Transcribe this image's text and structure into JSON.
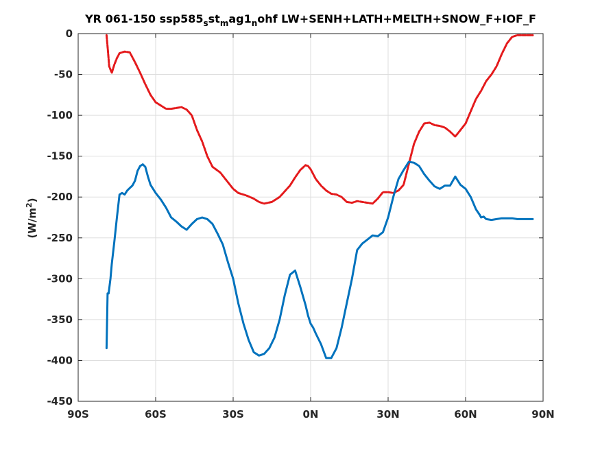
{
  "chart_data": {
    "type": "line",
    "title": {
      "prefix": "YR 061-150 ssp585",
      "sub1": "s",
      "mid1": "st",
      "sub2": "m",
      "mid2": "ag1",
      "sub3": "n",
      "suffix": "ohf LW+SENH+LATH+MELTH+SNOW_F+IOF_F"
    },
    "ylabel": {
      "prefix": "(W/m",
      "sup": "2",
      "suffix": ")"
    },
    "xlabel": "",
    "xlim": [
      -90,
      90
    ],
    "ylim": [
      -450,
      0
    ],
    "xticks": [
      -90,
      -60,
      -30,
      0,
      30,
      60,
      90
    ],
    "xtick_labels": [
      "90S",
      "60S",
      "30S",
      "0N",
      "30N",
      "60N",
      "90N"
    ],
    "yticks": [
      0,
      -50,
      -100,
      -150,
      -200,
      -250,
      -300,
      -350,
      -400,
      -450
    ],
    "ytick_labels": [
      "0",
      "-50",
      "-100",
      "-150",
      "-200",
      "-250",
      "-300",
      "-350",
      "-400",
      "-450"
    ],
    "grid": true,
    "series": [
      {
        "color": "#e41a1c",
        "style": "dashed",
        "x": [
          -79,
          -78.5,
          -78,
          -77,
          -76,
          -75,
          -74,
          -72,
          -70,
          -68,
          -66,
          -64,
          -62,
          -60,
          -58,
          -56,
          -54,
          -52,
          -50,
          -48,
          -46,
          -44,
          -42,
          -40,
          -38,
          -35,
          -32,
          -30,
          -28,
          -25,
          -22,
          -20,
          -18,
          -15,
          -12,
          -10,
          -8,
          -6,
          -4,
          -2,
          -1,
          0,
          1,
          2,
          4,
          6,
          8,
          10,
          12,
          14,
          16,
          18,
          20,
          22,
          24,
          26,
          28,
          30,
          32,
          34,
          36,
          38,
          40,
          42,
          44,
          46,
          48,
          50,
          52,
          54,
          56,
          58,
          60,
          62,
          64,
          66,
          68,
          70,
          72,
          74,
          76,
          78,
          80,
          82,
          84,
          86
        ],
        "y": [
          -2,
          -20,
          -40,
          -48,
          -38,
          -30,
          -24,
          -22,
          -23,
          -35,
          -48,
          -62,
          -75,
          -84,
          -88,
          -92,
          -92,
          -91,
          -90,
          -93,
          -100,
          -118,
          -132,
          -150,
          -163,
          -170,
          -182,
          -190,
          -195,
          -198,
          -202,
          -206,
          -208,
          -206,
          -200,
          -193,
          -186,
          -176,
          -167,
          -161,
          -162,
          -166,
          -172,
          -178,
          -186,
          -192,
          -196,
          -197,
          -200,
          -206,
          -207,
          -205,
          -206,
          -207,
          -208,
          -202,
          -194,
          -194,
          -195,
          -192,
          -185,
          -160,
          -135,
          -120,
          -110,
          -109,
          -112,
          -113,
          -115,
          -120,
          -126,
          -118,
          -110,
          -95,
          -80,
          -70,
          -58,
          -50,
          -40,
          -25,
          -12,
          -4,
          -2,
          -2,
          -2,
          -2
        ]
      },
      {
        "color": "#0072bd",
        "style": "solid",
        "x": [
          -79,
          -78.6,
          -78.2,
          -77.5,
          -77,
          -76,
          -75,
          -74,
          -73,
          -72,
          -71,
          -70,
          -69,
          -68,
          -67,
          -66,
          -65,
          -64,
          -63,
          -62,
          -60,
          -58,
          -56,
          -54,
          -52,
          -50,
          -48,
          -46,
          -44,
          -42,
          -40,
          -38,
          -36,
          -34,
          -32,
          -30,
          -28,
          -26,
          -24,
          -22,
          -20,
          -18,
          -16,
          -14,
          -12,
          -10,
          -8,
          -6,
          -4,
          -2,
          -1,
          0,
          1,
          2,
          4,
          6,
          8,
          10,
          12,
          14,
          16,
          18,
          20,
          22,
          24,
          26,
          28,
          30,
          32,
          34,
          36,
          38,
          40,
          42,
          44,
          46,
          48,
          50,
          52,
          54,
          56,
          58,
          60,
          62,
          64,
          65.5,
          66,
          67,
          68,
          70,
          72,
          74,
          76,
          78,
          80,
          82,
          84,
          86
        ],
        "y": [
          -385,
          -318,
          -318,
          -300,
          -282,
          -255,
          -225,
          -197,
          -195,
          -197,
          -192,
          -189,
          -186,
          -180,
          -168,
          -162,
          -160,
          -163,
          -175,
          -185,
          -195,
          -203,
          -213,
          -225,
          -230,
          -236,
          -240,
          -233,
          -227,
          -225,
          -227,
          -233,
          -245,
          -258,
          -280,
          -300,
          -330,
          -355,
          -375,
          -390,
          -394,
          -392,
          -385,
          -372,
          -350,
          -320,
          -295,
          -290,
          -310,
          -332,
          -345,
          -355,
          -360,
          -367,
          -380,
          -397,
          -397,
          -385,
          -360,
          -330,
          -300,
          -265,
          -257,
          -252,
          -247,
          -248,
          -243,
          -225,
          -200,
          -178,
          -167,
          -157,
          -158,
          -162,
          -172,
          -180,
          -187,
          -190,
          -186,
          -186,
          -175,
          -185,
          -190,
          -200,
          -215,
          -222,
          -225,
          -224,
          -227,
          -228,
          -227,
          -226,
          -226,
          -226,
          -227,
          -227,
          -227,
          -227
        ]
      }
    ]
  }
}
